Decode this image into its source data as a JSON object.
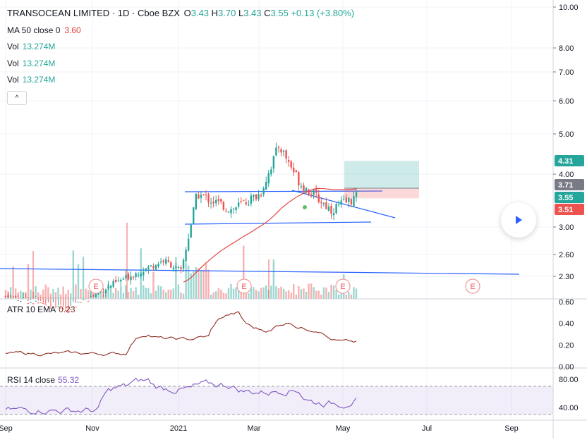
{
  "header": {
    "symbol": "TRANSOCEAN LIMITED",
    "interval": "1D",
    "exchange": "Cboe BZX",
    "o_label": "O",
    "o_value": "3.43",
    "h_label": "H",
    "h_value": "3.70",
    "l_label": "L",
    "l_value": "3.43",
    "c_label": "C",
    "c_value": "3.55",
    "change": "+0.13 (+3.80%)"
  },
  "studies": {
    "ma_label": "MA 50 close 0",
    "ma_value": "3.60",
    "vol_label": "Vol",
    "vol_value": "13.274M"
  },
  "collapse_glyph": "^",
  "price_axis": {
    "ticks": [
      "10.00",
      "8.00",
      "7.00",
      "6.00",
      "5.00",
      "4.00",
      "3.00",
      "2.60",
      "2.30"
    ],
    "badges": [
      {
        "text": "4.31",
        "color": "#26a69a"
      },
      {
        "text": "3.71",
        "color": "#787b86"
      },
      {
        "text": "3.55",
        "color": "#26a69a"
      },
      {
        "text": "3.51",
        "color": "#ef5350"
      }
    ]
  },
  "atr": {
    "label": "ATR 10 EMA",
    "value": "0.23",
    "ticks": [
      "0.60",
      "0.40",
      "0.20",
      "0.00"
    ]
  },
  "rsi": {
    "label": "RSI 14 close",
    "value": "55.32",
    "ticks": [
      "80.00",
      "40.00"
    ]
  },
  "time_axis": [
    "Sep",
    "Nov",
    "2021",
    "Mar",
    "May",
    "Jul",
    "Sep"
  ],
  "earnings_marker": "E",
  "colors": {
    "up": "#26a69a",
    "down": "#ef5350",
    "ma": "#e53935",
    "trendline": "#2962ff",
    "atr": "#8d2a1e",
    "rsi": "#7e57c2",
    "play": "#2962ff"
  },
  "chart_data": {
    "type": "candlestick",
    "price_range": [
      2.2,
      10.2
    ],
    "log_scale": true,
    "grid": true,
    "price_path": [
      {
        "date": "2020-09-01",
        "close": 2.05
      },
      {
        "date": "2020-10-15",
        "close": 1.9
      },
      {
        "date": "2020-11-15",
        "close": 2.2
      },
      {
        "date": "2020-12-20",
        "close": 2.5
      },
      {
        "date": "2021-01-01",
        "close": 2.35
      },
      {
        "date": "2021-01-12",
        "close": 3.6
      },
      {
        "date": "2021-02-05",
        "close": 3.3
      },
      {
        "date": "2021-02-25",
        "close": 3.6
      },
      {
        "date": "2021-03-10",
        "close": 4.7
      },
      {
        "date": "2021-03-25",
        "close": 3.8
      },
      {
        "date": "2021-04-15",
        "close": 3.3
      },
      {
        "date": "2021-05-04",
        "close": 3.55
      }
    ],
    "ma50": {
      "latest": 3.6
    },
    "atr": {
      "range": [
        0,
        0.6
      ],
      "latest": 0.23
    },
    "rsi": {
      "range": [
        30,
        90
      ],
      "band": [
        30,
        70
      ],
      "latest": 55.32
    }
  }
}
